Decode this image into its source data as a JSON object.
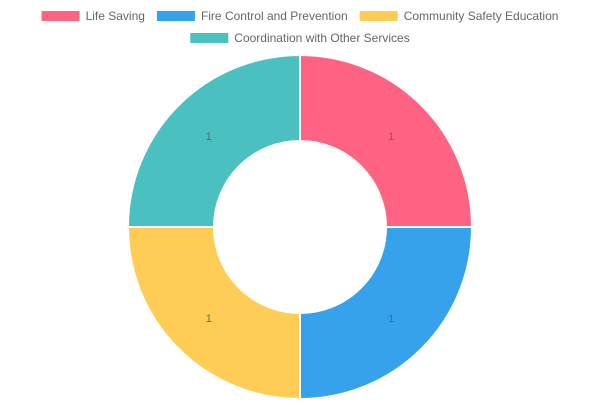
{
  "chart_data": {
    "type": "pie",
    "variant": "doughnut",
    "legend_position": "top",
    "categories": [
      "Life Saving",
      "Fire Control and Prevention",
      "Community Safety Education",
      "Coordination with Other Services"
    ],
    "values": [
      1,
      1,
      1,
      1
    ],
    "colors": [
      "#ff6384",
      "#36a2eb",
      "#ffcd56",
      "#4bc0c0"
    ],
    "data_labels": [
      "1",
      "1",
      "1",
      "1"
    ]
  }
}
